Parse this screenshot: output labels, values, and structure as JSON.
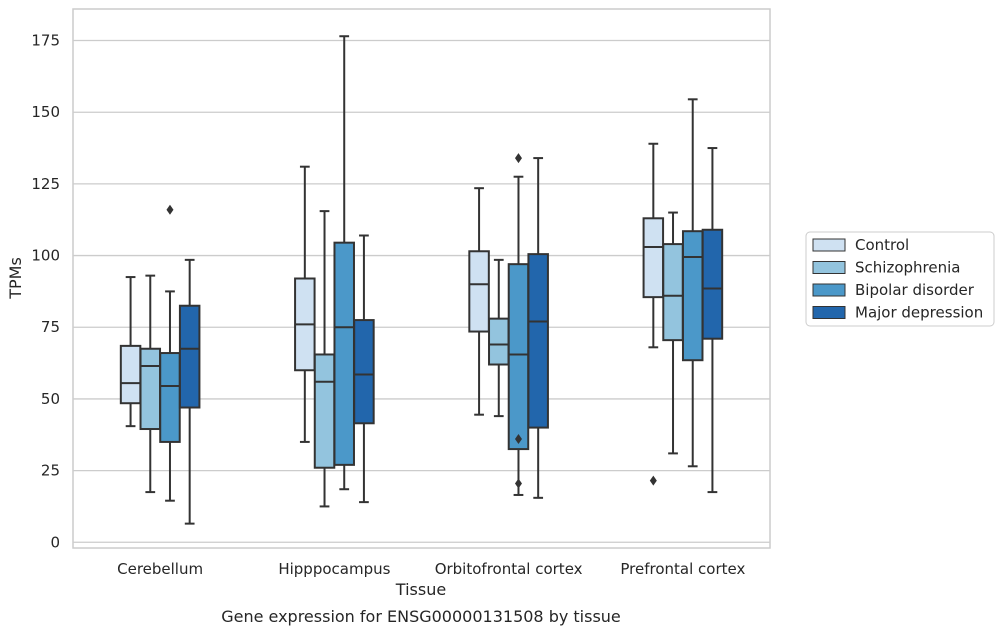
{
  "chart_data": {
    "type": "box",
    "caption": "Gene expression for ENSG00000131508 by tissue",
    "xlabel": "Tissue",
    "ylabel": "TPMs",
    "ylim": [
      -2,
      186
    ],
    "yticks": [
      0,
      25,
      50,
      75,
      100,
      125,
      150,
      175
    ],
    "grid": "horizontal",
    "legend_position": "right",
    "categories": [
      "Cerebellum",
      "Hipppocampus",
      "Orbitofrontal cortex",
      "Prefrontal cortex"
    ],
    "series": [
      {
        "name": "Control",
        "color": "#cfe1f2",
        "boxes": [
          {
            "whisker_low": 40.5,
            "q1": 48.5,
            "median": 55.5,
            "q3": 68.5,
            "whisker_high": 92.5,
            "outliers": []
          },
          {
            "whisker_low": 35.0,
            "q1": 60.0,
            "median": 76.0,
            "q3": 92.0,
            "whisker_high": 131.0,
            "outliers": []
          },
          {
            "whisker_low": 44.5,
            "q1": 73.5,
            "median": 90.0,
            "q3": 101.5,
            "whisker_high": 123.5,
            "outliers": []
          },
          {
            "whisker_low": 68.0,
            "q1": 85.5,
            "median": 103.0,
            "q3": 113.0,
            "whisker_high": 139.0,
            "outliers": [
              21.5
            ]
          }
        ]
      },
      {
        "name": "Schizophrenia",
        "color": "#93c4de",
        "boxes": [
          {
            "whisker_low": 17.5,
            "q1": 39.5,
            "median": 61.5,
            "q3": 67.5,
            "whisker_high": 93.0,
            "outliers": []
          },
          {
            "whisker_low": 12.5,
            "q1": 26.0,
            "median": 56.0,
            "q3": 65.5,
            "whisker_high": 115.5,
            "outliers": []
          },
          {
            "whisker_low": 44.0,
            "q1": 62.0,
            "median": 69.0,
            "q3": 78.0,
            "whisker_high": 98.5,
            "outliers": []
          },
          {
            "whisker_low": 31.0,
            "q1": 70.5,
            "median": 86.0,
            "q3": 104.0,
            "whisker_high": 115.0,
            "outliers": []
          }
        ]
      },
      {
        "name": "Bipolar disorder",
        "color": "#4b98c9",
        "boxes": [
          {
            "whisker_low": 14.5,
            "q1": 35.0,
            "median": 54.5,
            "q3": 66.0,
            "whisker_high": 87.5,
            "outliers": [
              116.0
            ]
          },
          {
            "whisker_low": 18.5,
            "q1": 27.0,
            "median": 75.0,
            "q3": 104.5,
            "whisker_high": 176.5,
            "outliers": []
          },
          {
            "whisker_low": 16.5,
            "q1": 32.5,
            "median": 65.5,
            "q3": 97.0,
            "whisker_high": 127.5,
            "outliers": [
              134.0,
              36.0,
              20.5
            ]
          },
          {
            "whisker_low": 26.5,
            "q1": 63.5,
            "median": 99.5,
            "q3": 108.5,
            "whisker_high": 154.5,
            "outliers": []
          }
        ]
      },
      {
        "name": "Major depression",
        "color": "#2266ac",
        "boxes": [
          {
            "whisker_low": 6.5,
            "q1": 47.0,
            "median": 67.5,
            "q3": 82.5,
            "whisker_high": 98.5,
            "outliers": []
          },
          {
            "whisker_low": 14.0,
            "q1": 41.5,
            "median": 58.5,
            "q3": 77.5,
            "whisker_high": 107.0,
            "outliers": []
          },
          {
            "whisker_low": 15.5,
            "q1": 40.0,
            "median": 77.0,
            "q3": 100.5,
            "whisker_high": 134.0,
            "outliers": []
          },
          {
            "whisker_low": 17.5,
            "q1": 71.0,
            "median": 88.5,
            "q3": 109.0,
            "whisker_high": 137.5,
            "outliers": []
          }
        ]
      }
    ]
  }
}
